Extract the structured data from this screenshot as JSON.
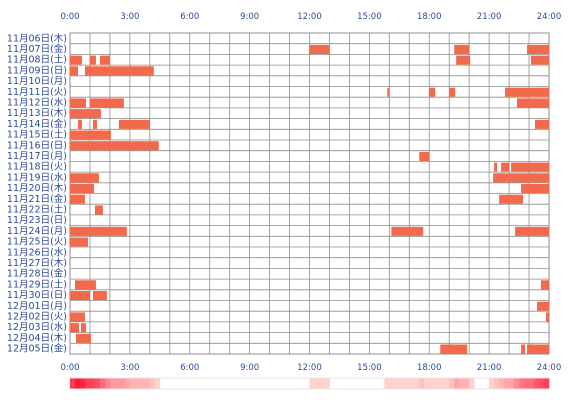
{
  "chart_data": {
    "type": "heatmap",
    "title": "",
    "xlabel": "",
    "ylabel": "",
    "x_range_hours": [
      0,
      24
    ],
    "x_tick_labels": [
      "0:00",
      "3:00",
      "6:00",
      "9:00",
      "12:00",
      "15:00",
      "18:00",
      "21:00",
      "24:00"
    ],
    "colors": {
      "bar": "#f26a4b",
      "bar_dark": "#e8553a",
      "grid": "#8e8e8e",
      "axis_text": "#2b4a9a",
      "summary_peak": "#ff1a38",
      "summary_light": "#ffe2dc"
    },
    "rows": [
      {
        "label": "11月06日(木)",
        "intervals": []
      },
      {
        "label": "11月07日(金)",
        "intervals": [
          [
            12.0,
            13.0
          ],
          [
            19.25,
            20.0
          ],
          [
            22.9,
            24.0
          ]
        ]
      },
      {
        "label": "11月08日(土)",
        "intervals": [
          [
            0.0,
            0.6
          ],
          [
            1.0,
            1.3
          ],
          [
            1.5,
            2.0
          ],
          [
            19.35,
            20.05
          ],
          [
            23.1,
            24.0
          ]
        ]
      },
      {
        "label": "11月09日(日)",
        "intervals": [
          [
            0.0,
            0.4
          ],
          [
            0.75,
            4.2
          ]
        ]
      },
      {
        "label": "11月10日(月)",
        "intervals": []
      },
      {
        "label": "11月11日(火)",
        "intervals": [
          [
            15.9,
            16.0
          ],
          [
            18.0,
            18.3
          ],
          [
            19.0,
            19.3
          ],
          [
            21.8,
            24.0
          ]
        ]
      },
      {
        "label": "11月12日(水)",
        "intervals": [
          [
            0.0,
            0.8
          ],
          [
            1.0,
            2.7
          ],
          [
            22.4,
            24.0
          ]
        ]
      },
      {
        "label": "11月13日(木)",
        "intervals": [
          [
            0.0,
            1.55
          ]
        ]
      },
      {
        "label": "11月14日(金)",
        "intervals": [
          [
            0.4,
            0.6
          ],
          [
            1.15,
            1.35
          ],
          [
            2.45,
            4.0
          ],
          [
            23.3,
            24.0
          ]
        ]
      },
      {
        "label": "11月15日(土)",
        "intervals": [
          [
            0.0,
            2.05
          ]
        ]
      },
      {
        "label": "11月16日(日)",
        "intervals": [
          [
            0.0,
            4.45
          ]
        ]
      },
      {
        "label": "11月17日(月)",
        "intervals": [
          [
            17.5,
            18.0
          ]
        ]
      },
      {
        "label": "11月18日(火)",
        "intervals": [
          [
            21.25,
            21.4
          ],
          [
            21.6,
            22.0
          ],
          [
            22.1,
            24.0
          ]
        ]
      },
      {
        "label": "11月19日(水)",
        "intervals": [
          [
            0.0,
            1.45
          ],
          [
            21.2,
            24.0
          ]
        ]
      },
      {
        "label": "11月20日(木)",
        "intervals": [
          [
            0.0,
            1.2
          ],
          [
            22.6,
            24.0
          ]
        ]
      },
      {
        "label": "11月21日(金)",
        "intervals": [
          [
            0.0,
            0.75
          ],
          [
            21.5,
            22.7
          ]
        ]
      },
      {
        "label": "11月22日(土)",
        "intervals": [
          [
            1.25,
            1.65
          ]
        ]
      },
      {
        "label": "11月23日(日)",
        "intervals": []
      },
      {
        "label": "11月24日(月)",
        "intervals": [
          [
            0.0,
            2.85
          ],
          [
            16.1,
            17.7
          ],
          [
            22.3,
            24.0
          ]
        ]
      },
      {
        "label": "11月25日(火)",
        "intervals": [
          [
            0.0,
            0.9
          ]
        ]
      },
      {
        "label": "11月26日(水)",
        "intervals": []
      },
      {
        "label": "11月27日(木)",
        "intervals": []
      },
      {
        "label": "11月28日(金)",
        "intervals": []
      },
      {
        "label": "11月29日(土)",
        "intervals": [
          [
            0.25,
            1.3
          ],
          [
            23.6,
            24.0
          ]
        ]
      },
      {
        "label": "11月30日(日)",
        "intervals": [
          [
            0.0,
            1.0
          ],
          [
            1.15,
            1.85
          ]
        ]
      },
      {
        "label": "12月01日(月)",
        "intervals": [
          [
            23.4,
            24.0
          ]
        ]
      },
      {
        "label": "12月02日(火)",
        "intervals": [
          [
            0.0,
            0.75
          ],
          [
            23.85,
            24.0
          ]
        ]
      },
      {
        "label": "12月03日(水)",
        "intervals": [
          [
            0.0,
            0.45
          ],
          [
            0.55,
            0.8
          ]
        ]
      },
      {
        "label": "12月04日(木)",
        "intervals": [
          [
            0.3,
            1.05
          ]
        ]
      },
      {
        "label": "12月05日(金)",
        "intervals": [
          [
            18.55,
            19.9
          ],
          [
            22.6,
            22.8
          ],
          [
            22.9,
            24.0
          ]
        ]
      }
    ]
  }
}
